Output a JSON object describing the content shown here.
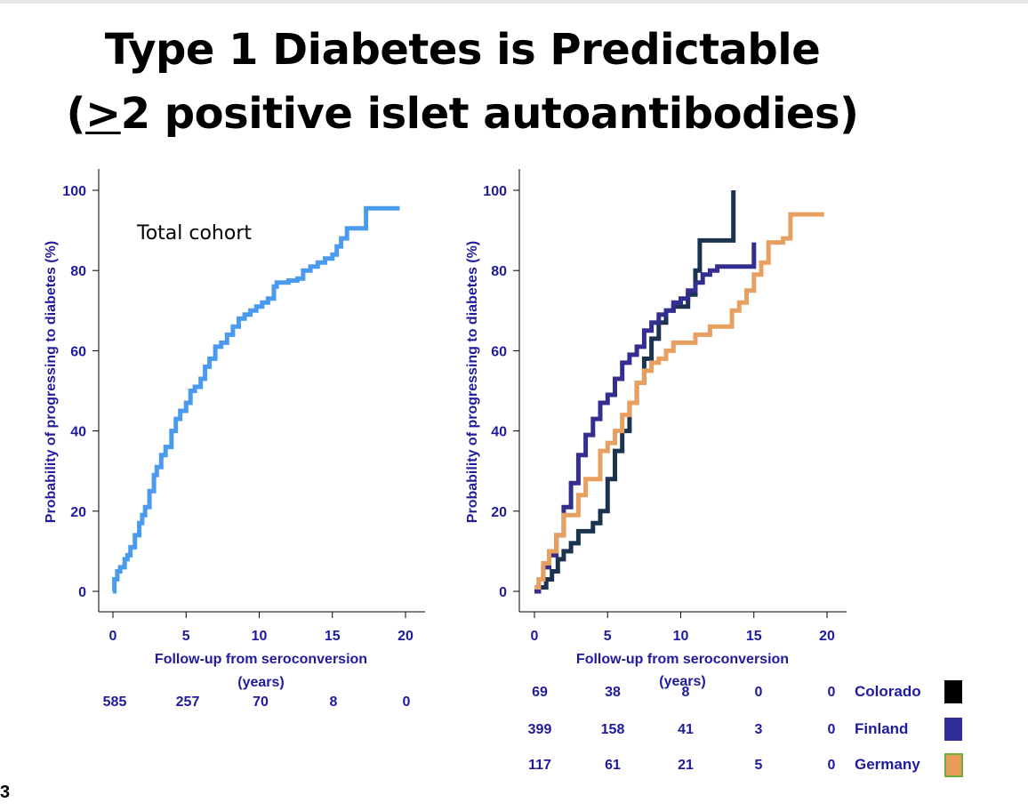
{
  "title": {
    "line1": "Type 1 Diabetes is Predictable",
    "line2_prefix": "(",
    "line2_ge": ">",
    "line2_rest": "2 positive islet autoantibodies)"
  },
  "slide_number": "3",
  "colors": {
    "axis_text": "#1f1b9c",
    "total": "#4a9bee",
    "colorado": "#1c3350",
    "finland": "#352e91",
    "germany": "#e8a060",
    "legend_colorado": "#000000",
    "legend_finland": "#2f2e96",
    "legend_germany": "#e89c5c",
    "legend_germany_border": "#6fae3c"
  },
  "chart_data": [
    {
      "type": "line",
      "step": true,
      "annotation": "Total cohort",
      "xlabel": "Follow-up from seroconversion (years)",
      "ylabel": "Probability of progressing to diabetes (%)",
      "xlim": [
        0,
        20
      ],
      "ylim": [
        0,
        100
      ],
      "xticks": [
        0,
        5,
        10,
        15,
        20
      ],
      "yticks": [
        0,
        20,
        40,
        60,
        80,
        100
      ],
      "grid": false,
      "series": [
        {
          "key": "total",
          "x": [
            0,
            0.1,
            0.3,
            0.5,
            0.8,
            1.0,
            1.2,
            1.5,
            1.8,
            2.0,
            2.2,
            2.5,
            2.8,
            3.0,
            3.3,
            3.6,
            4.0,
            4.3,
            4.6,
            5.0,
            5.3,
            5.6,
            6.0,
            6.3,
            6.6,
            7.0,
            7.4,
            7.8,
            8.2,
            8.6,
            9.0,
            9.4,
            9.8,
            10.2,
            10.6,
            11.0,
            11.2,
            11.5,
            12.0,
            12.6,
            13.0,
            13.5,
            14.0,
            14.5,
            15.0,
            15.3,
            15.6,
            16.0,
            17.0,
            17.3,
            18.0,
            19.0,
            19.6
          ],
          "y": [
            0,
            3,
            5,
            6,
            8,
            9,
            11,
            14,
            17,
            19,
            21,
            25,
            29,
            31,
            34,
            36,
            40,
            43,
            45,
            47,
            50,
            51,
            53,
            56,
            58,
            61,
            62,
            64,
            66,
            68,
            69,
            70,
            71,
            72,
            73,
            76,
            77,
            77,
            77.5,
            78,
            80,
            81,
            82,
            83,
            84,
            86,
            88,
            90.5,
            90.5,
            95.5,
            95.5,
            95.5,
            95.5
          ]
        }
      ],
      "risk_table": {
        "rows": [
          {
            "values": [
              "585",
              "257",
              "70",
              "8",
              "0"
            ]
          }
        ]
      }
    },
    {
      "type": "line",
      "step": true,
      "xlabel": "Follow-up from seroconversion (years)",
      "ylabel": "Probability of progressing to diabetes (%)",
      "xlim": [
        0,
        20
      ],
      "ylim": [
        0,
        100
      ],
      "xticks": [
        0,
        5,
        10,
        15,
        20
      ],
      "yticks": [
        0,
        20,
        40,
        60,
        80,
        100
      ],
      "grid": false,
      "legend": "right",
      "series": [
        {
          "key": "colorado",
          "name": "Colorado",
          "x": [
            0,
            0.3,
            0.8,
            1.2,
            1.6,
            2.0,
            2.5,
            3.0,
            3.5,
            4.0,
            4.5,
            5.0,
            5.5,
            6.0,
            6.5,
            7.0,
            7.5,
            8.0,
            8.5,
            9.0,
            9.5,
            10.0,
            10.5,
            11.0,
            11.3,
            12.0,
            13.0,
            13.6,
            13.6
          ],
          "y": [
            0,
            1,
            3,
            5,
            8,
            10,
            12,
            15,
            15,
            17,
            20,
            28,
            35,
            40,
            47,
            52,
            58,
            63,
            67,
            70,
            71,
            71,
            74,
            80,
            87.5,
            87.5,
            87.5,
            87.5,
            100
          ]
        },
        {
          "key": "finland",
          "name": "Finland",
          "x": [
            0,
            0.3,
            0.6,
            1.0,
            1.5,
            2.0,
            2.5,
            3.0,
            3.5,
            4.0,
            4.5,
            5.0,
            5.5,
            6.0,
            6.5,
            7.0,
            7.5,
            8.0,
            8.5,
            9.0,
            9.5,
            10.0,
            10.5,
            11.0,
            11.5,
            12.0,
            12.5,
            13.0,
            14.0,
            14.8,
            15.0
          ],
          "y": [
            0,
            3,
            6,
            9,
            14,
            21,
            27,
            34,
            39,
            43,
            47,
            49,
            53,
            57,
            59,
            61,
            65,
            67,
            69,
            70,
            72,
            73,
            75,
            77,
            79,
            80,
            81,
            81,
            81,
            81,
            87
          ]
        },
        {
          "key": "germany",
          "name": "Germany",
          "x": [
            0,
            0.3,
            0.6,
            1.0,
            1.5,
            2.0,
            2.5,
            3.0,
            3.5,
            4.0,
            4.5,
            5.0,
            5.5,
            6.0,
            6.5,
            7.0,
            7.5,
            8.0,
            8.5,
            9.0,
            9.5,
            10.0,
            11.0,
            12.0,
            13.0,
            13.5,
            14.0,
            14.5,
            15.0,
            15.5,
            16.0,
            17.0,
            17.5,
            18.0,
            19.0,
            19.8
          ],
          "y": [
            1,
            3,
            7,
            10,
            14,
            19,
            19,
            24,
            28,
            28,
            35,
            37,
            40,
            44,
            47,
            52,
            55,
            57,
            58,
            60,
            62,
            62,
            64,
            66,
            66,
            70,
            72,
            75,
            79,
            82,
            87,
            88,
            94,
            94,
            94,
            94
          ]
        }
      ],
      "risk_table": {
        "rows": [
          {
            "label": "Colorado",
            "values": [
              "69",
              "38",
              "8",
              "0",
              "0"
            ]
          },
          {
            "label": "Finland",
            "values": [
              "399",
              "158",
              "41",
              "3",
              "0"
            ]
          },
          {
            "label": "Germany",
            "values": [
              "117",
              "61",
              "21",
              "5",
              "0"
            ]
          }
        ]
      }
    }
  ]
}
